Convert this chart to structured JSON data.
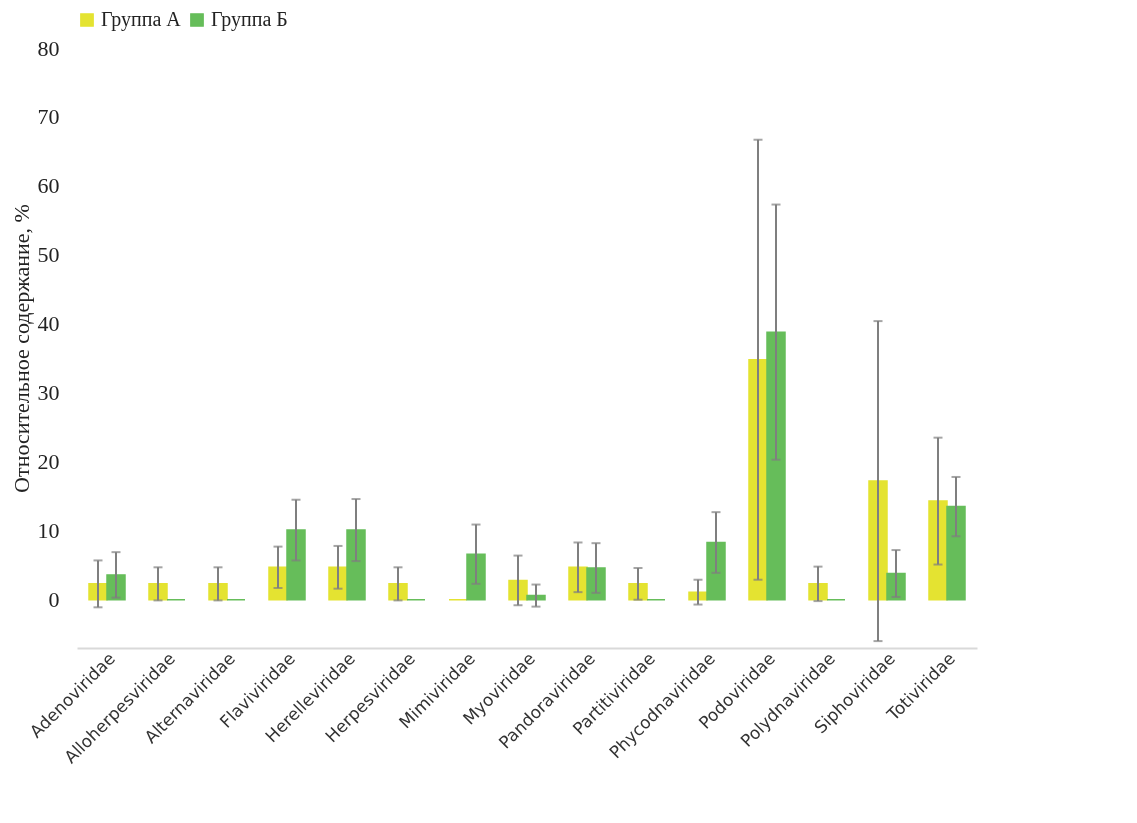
{
  "chart_data": {
    "type": "bar",
    "ylabel": "Относительное содержание, %",
    "categories": [
      "Adenoviridae",
      "Alloherpesviridae",
      "Alternaviridae",
      "Flaviviridae",
      "Herelleviridae",
      "Herpesviridae",
      "Mimiviridae",
      "Myoviridae",
      "Pandoraviridae",
      "Partitiviridae",
      "Phycodnaviridae",
      "Podoviridae",
      "Polydnaviridae",
      "Siphoviridae",
      "Totiviridae"
    ],
    "series": [
      {
        "name": "Группа А",
        "color": "#e4e331",
        "values": [
          2.3,
          2.3,
          2.3,
          4.7,
          4.7,
          2.3,
          0,
          2.8,
          4.7,
          2.3,
          1.1,
          34.8,
          2.3,
          17.2,
          14.3
        ],
        "errors": [
          3.4,
          2.4,
          2.4,
          3.0,
          3.1,
          2.4,
          null,
          3.6,
          3.6,
          2.3,
          1.8,
          31.9,
          2.5,
          23.2,
          9.2
        ]
      },
      {
        "name": "Группа Б",
        "color": "#66bd5a",
        "values": [
          3.6,
          0,
          0,
          10.1,
          10.1,
          0,
          6.6,
          0.6,
          4.6,
          0,
          8.3,
          38.8,
          0,
          3.8,
          13.5
        ],
        "errors": [
          3.3,
          null,
          null,
          4.4,
          4.5,
          null,
          4.3,
          1.6,
          3.6,
          null,
          4.4,
          18.5,
          null,
          3.4,
          4.3
        ]
      }
    ],
    "ylim": [
      -7,
      80
    ],
    "yticks": [
      0,
      10,
      20,
      30,
      40,
      50,
      60,
      70,
      80
    ],
    "grid": false,
    "legend": "top"
  }
}
